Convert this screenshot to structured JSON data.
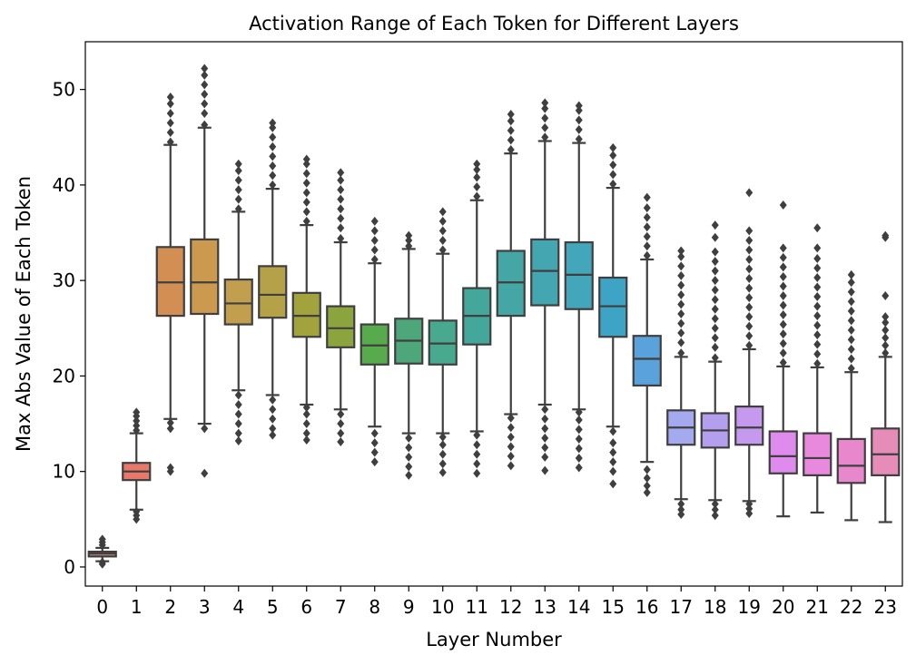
{
  "chart_data": {
    "type": "box",
    "title": "Activation Range of Each Token for Different Layers",
    "xlabel": "Layer Number",
    "ylabel": "Max Abs Value of Each Token",
    "ylim": [
      -2,
      55
    ],
    "yticks": [
      0,
      10,
      20,
      30,
      40,
      50
    ],
    "grid": false,
    "line_color": "#3f3f3f",
    "categories": [
      "0",
      "1",
      "2",
      "3",
      "4",
      "5",
      "6",
      "7",
      "8",
      "9",
      "10",
      "11",
      "12",
      "13",
      "14",
      "15",
      "16",
      "17",
      "18",
      "19",
      "20",
      "21",
      "22",
      "23"
    ],
    "boxes": [
      {
        "layer": "0",
        "color": "#cd8a7c",
        "whislo": 0.6,
        "q1": 1.1,
        "median": 1.4,
        "q3": 1.6,
        "whishi": 2.0,
        "fliers_low": [
          0.3,
          0.5
        ],
        "fliers_high": [
          2.3,
          2.6,
          2.9
        ]
      },
      {
        "layer": "1",
        "color": "#e8796a",
        "whislo": 6.0,
        "q1": 9.1,
        "median": 10.0,
        "q3": 10.9,
        "whishi": 14.0,
        "fliers_low": [
          5.0,
          5.4,
          5.8
        ],
        "fliers_high": [
          14.3,
          14.8,
          15.3,
          15.8,
          16.2
        ]
      },
      {
        "layer": "2",
        "color": "#d28e53",
        "whislo": 15.5,
        "q1": 26.3,
        "median": 29.8,
        "q3": 33.5,
        "whishi": 44.2,
        "fliers_low": [
          10.0,
          10.4,
          14.5,
          15.1
        ],
        "fliers_high": [
          44.5,
          45.5,
          46.5,
          47.5,
          48.5,
          49.2
        ]
      },
      {
        "layer": "3",
        "color": "#cb9a4f",
        "whislo": 15.0,
        "q1": 26.5,
        "median": 29.8,
        "q3": 34.3,
        "whishi": 46.0,
        "fliers_low": [
          9.8,
          14.5
        ],
        "fliers_high": [
          46.3,
          47.5,
          48.5,
          49.5,
          50.5,
          51.5,
          52.2
        ]
      },
      {
        "layer": "4",
        "color": "#c29f4e",
        "whislo": 18.5,
        "q1": 25.4,
        "median": 27.6,
        "q3": 30.1,
        "whishi": 37.2,
        "fliers_low": [
          13.2,
          14.0,
          15.0,
          16.0,
          17.0,
          18.0
        ],
        "fliers_high": [
          37.5,
          38.5,
          39.5,
          40.5,
          41.5,
          42.2
        ]
      },
      {
        "layer": "5",
        "color": "#b4a148",
        "whislo": 18.0,
        "q1": 26.1,
        "median": 28.5,
        "q3": 31.5,
        "whishi": 39.6,
        "fliers_low": [
          13.8,
          14.5,
          15.5,
          16.5,
          17.5
        ],
        "fliers_high": [
          40.0,
          41.0,
          42.0,
          43.0,
          44.0,
          45.0,
          46.0,
          46.5
        ]
      },
      {
        "layer": "6",
        "color": "#a3a33e",
        "whislo": 17.0,
        "q1": 24.1,
        "median": 26.3,
        "q3": 28.7,
        "whishi": 35.8,
        "fliers_low": [
          13.3,
          14.0,
          15.0,
          16.0,
          16.7
        ],
        "fliers_high": [
          36.2,
          37.2,
          38.2,
          39.2,
          40.2,
          41.2,
          42.2,
          42.7
        ]
      },
      {
        "layer": "7",
        "color": "#8ba43e",
        "whislo": 16.5,
        "q1": 23.0,
        "median": 25.0,
        "q3": 27.3,
        "whishi": 34.0,
        "fliers_low": [
          13.1,
          14.0,
          15.0,
          16.0
        ],
        "fliers_high": [
          34.4,
          35.5,
          36.5,
          37.5,
          38.5,
          39.5,
          40.5,
          41.3
        ]
      },
      {
        "layer": "8",
        "color": "#58ab4c",
        "whislo": 14.7,
        "q1": 21.2,
        "median": 23.2,
        "q3": 25.4,
        "whishi": 31.8,
        "fliers_low": [
          11.0,
          12.0,
          13.0,
          14.0
        ],
        "fliers_high": [
          32.2,
          33.2,
          34.2,
          35.2,
          36.2
        ]
      },
      {
        "layer": "9",
        "color": "#4ea77a",
        "whislo": 14.0,
        "q1": 21.3,
        "median": 23.7,
        "q3": 26.0,
        "whishi": 33.3,
        "fliers_low": [
          9.6,
          10.5,
          11.5,
          12.5,
          13.5
        ],
        "fliers_high": [
          33.6,
          34.2,
          34.7
        ]
      },
      {
        "layer": "10",
        "color": "#48a98e",
        "whislo": 14.0,
        "q1": 21.2,
        "median": 23.4,
        "q3": 25.8,
        "whishi": 32.8,
        "fliers_low": [
          9.9,
          10.8,
          11.8,
          12.8,
          13.6
        ],
        "fliers_high": [
          33.2,
          34.2,
          35.2,
          36.2,
          37.2
        ]
      },
      {
        "layer": "11",
        "color": "#44a79b",
        "whislo": 14.2,
        "q1": 23.3,
        "median": 26.3,
        "q3": 29.2,
        "whishi": 38.4,
        "fliers_low": [
          9.8,
          10.8,
          11.8,
          12.8,
          13.8
        ],
        "fliers_high": [
          38.8,
          39.8,
          40.8,
          41.6,
          42.2
        ]
      },
      {
        "layer": "12",
        "color": "#45a6a6",
        "whislo": 16.0,
        "q1": 26.3,
        "median": 29.8,
        "q3": 33.1,
        "whishi": 43.3,
        "fliers_low": [
          10.6,
          11.6,
          12.6,
          13.6,
          14.6,
          15.6
        ],
        "fliers_high": [
          43.7,
          44.7,
          45.7,
          46.7,
          47.4
        ]
      },
      {
        "layer": "13",
        "color": "#43a6b1",
        "whislo": 17.0,
        "q1": 27.4,
        "median": 31.0,
        "q3": 34.3,
        "whishi": 44.6,
        "fliers_low": [
          10.1,
          11.5,
          12.5,
          13.5,
          14.5,
          15.5,
          16.5
        ],
        "fliers_high": [
          45.0,
          46.0,
          47.0,
          48.0,
          48.6
        ]
      },
      {
        "layer": "14",
        "color": "#44a6bb",
        "whislo": 16.5,
        "q1": 27.0,
        "median": 30.6,
        "q3": 34.0,
        "whishi": 44.4,
        "fliers_low": [
          10.4,
          11.4,
          12.4,
          13.4,
          14.4,
          15.4,
          16.2
        ],
        "fliers_high": [
          44.8,
          45.8,
          46.8,
          47.8,
          48.3
        ]
      },
      {
        "layer": "15",
        "color": "#3ea4c6",
        "whislo": 14.7,
        "q1": 24.1,
        "median": 27.3,
        "q3": 30.3,
        "whishi": 39.7,
        "fliers_low": [
          8.7,
          10.0,
          11.0,
          12.0,
          13.0,
          14.2
        ],
        "fliers_high": [
          40.1,
          41.1,
          42.1,
          43.1,
          43.9
        ]
      },
      {
        "layer": "16",
        "color": "#5aa2dc",
        "whislo": 11.0,
        "q1": 19.0,
        "median": 21.8,
        "q3": 24.2,
        "whishi": 32.2,
        "fliers_low": [
          7.8,
          8.5,
          9.3,
          10.2
        ],
        "fliers_high": [
          32.6,
          33.6,
          34.6,
          35.6,
          36.6,
          37.6,
          38.7
        ]
      },
      {
        "layer": "17",
        "color": "#a5a9ee",
        "whislo": 7.1,
        "q1": 12.8,
        "median": 14.6,
        "q3": 16.4,
        "whishi": 22.0,
        "fliers_low": [
          5.5,
          6.0,
          6.6
        ],
        "fliers_high": [
          22.4,
          23.5,
          24.5,
          25.5,
          26.5,
          27.5,
          28.5,
          29.5,
          30.5,
          31.5,
          32.5,
          33.1
        ]
      },
      {
        "layer": "18",
        "color": "#b39fee",
        "whislo": 7.0,
        "q1": 12.5,
        "median": 14.3,
        "q3": 16.1,
        "whishi": 21.5,
        "fliers_low": [
          5.4,
          6.0,
          6.6
        ],
        "fliers_high": [
          21.9,
          23.0,
          24.0,
          25.0,
          26.0,
          27.0,
          28.0,
          29.0,
          30.0,
          31.0,
          32.0,
          33.0,
          34.5,
          35.8
        ]
      },
      {
        "layer": "19",
        "color": "#c59aee",
        "whislo": 6.9,
        "q1": 12.8,
        "median": 14.6,
        "q3": 16.8,
        "whishi": 22.8,
        "fliers_low": [
          5.6,
          6.1,
          6.6
        ],
        "fliers_high": [
          23.2,
          24.2,
          25.2,
          26.2,
          27.2,
          28.2,
          29.2,
          30.2,
          31.2,
          32.2,
          33.2,
          34.2,
          35.2,
          39.2
        ]
      },
      {
        "layer": "20",
        "color": "#de8bed",
        "whislo": 5.3,
        "q1": 9.8,
        "median": 11.6,
        "q3": 14.2,
        "whishi": 21.0,
        "fliers_low": [],
        "fliers_high": [
          21.4,
          22.4,
          23.4,
          24.4,
          25.4,
          26.4,
          27.4,
          28.4,
          29.4,
          30.4,
          31.4,
          32.4,
          33.4,
          37.9
        ]
      },
      {
        "layer": "21",
        "color": "#e889dd",
        "whislo": 5.7,
        "q1": 9.6,
        "median": 11.4,
        "q3": 14.0,
        "whishi": 20.9,
        "fliers_low": [],
        "fliers_high": [
          21.3,
          22.3,
          23.3,
          24.3,
          25.3,
          26.3,
          27.3,
          28.3,
          29.3,
          30.3,
          31.3,
          32.3,
          33.4,
          35.5
        ]
      },
      {
        "layer": "22",
        "color": "#e887cb",
        "whislo": 4.9,
        "q1": 8.8,
        "median": 10.6,
        "q3": 13.4,
        "whishi": 20.4,
        "fliers_low": [],
        "fliers_high": [
          20.8,
          21.8,
          22.8,
          23.8,
          24.8,
          25.8,
          26.8,
          27.8,
          28.8,
          29.8,
          30.6
        ]
      },
      {
        "layer": "23",
        "color": "#e58db8",
        "whislo": 4.7,
        "q1": 9.6,
        "median": 11.8,
        "q3": 14.5,
        "whishi": 22.0,
        "fliers_low": [],
        "fliers_high": [
          22.4,
          23.2,
          24.0,
          24.8,
          25.6,
          26.2,
          28.4,
          34.5,
          34.7
        ]
      }
    ]
  }
}
